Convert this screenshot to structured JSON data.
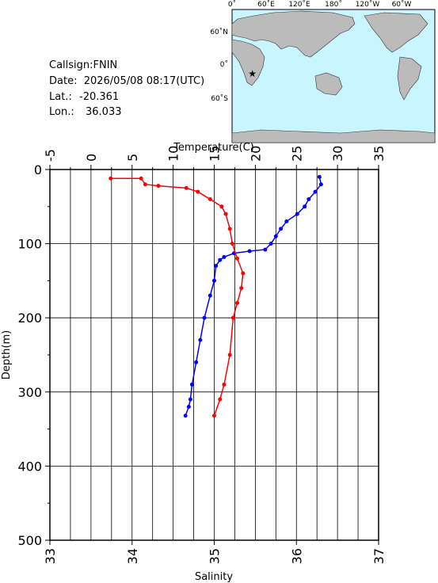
{
  "chart_data": {
    "type": "profile",
    "x_label": "Temperature(C)",
    "x2_label": "Salinity",
    "y_label": "Depth(m)",
    "xlim": [
      -5,
      35
    ],
    "xticks": [
      -5,
      0,
      5,
      10,
      15,
      20,
      25,
      30,
      35
    ],
    "xminorticks": [
      -2.5,
      2.5,
      7.5,
      12.5,
      17.5,
      22.5,
      27.5,
      32.5
    ],
    "x2lim": [
      33,
      37
    ],
    "x2ticks": [
      33,
      34,
      35,
      36,
      37
    ],
    "ylim": [
      500,
      0
    ],
    "yticks": [
      0,
      100,
      200,
      300,
      400,
      500
    ],
    "yminorticks": [
      50,
      150,
      250,
      350,
      450
    ],
    "series": [
      {
        "color": "#0000ff",
        "axis": "x",
        "values": [
          27.8,
          28.0,
          27.3,
          26.5,
          26.0,
          25.1,
          23.8,
          23.1,
          22.5,
          21.9,
          21.2,
          19.3,
          17.4,
          16.2,
          15.7,
          15.2,
          15.0,
          14.5,
          13.8,
          13.3,
          12.8,
          12.3,
          12.1,
          11.9,
          11.5
        ],
        "depth": [
          10,
          20,
          30,
          40,
          50,
          60,
          70,
          80,
          90,
          100,
          108,
          110,
          113,
          118,
          122,
          130,
          150,
          170,
          200,
          230,
          260,
          290,
          310,
          320,
          332
        ]
      },
      {
        "color": "#ff0000",
        "axis": "x2",
        "values": [
          33.74,
          34.11,
          34.16,
          34.32,
          34.66,
          34.8,
          34.95,
          35.09,
          35.14,
          35.19,
          35.22,
          35.28,
          35.35,
          35.33,
          35.28,
          35.23,
          35.19,
          35.12,
          35.07,
          35.0
        ],
        "depth": [
          12,
          12,
          20,
          22,
          25,
          30,
          40,
          50,
          60,
          80,
          100,
          120,
          140,
          160,
          180,
          200,
          250,
          290,
          310,
          332
        ]
      }
    ]
  },
  "station": {
    "callsign": "Callsign:FNIN",
    "date": "Date:  2026/05/08 08:17(UTC)",
    "lat_label": "Lat.:",
    "lat": -20.361,
    "lon_label": "Lon.:",
    "lon": 36.033
  },
  "map": {
    "lon_labels": [
      "0˚",
      "60˚E",
      "120˚E",
      "180˚",
      "120˚W",
      "60˚W"
    ],
    "lat_labels": [
      "60˚N",
      "0˚",
      "60˚S"
    ]
  }
}
